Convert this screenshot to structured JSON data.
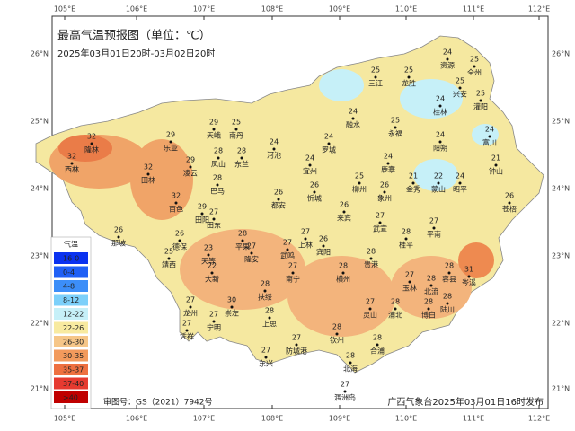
{
  "header": {
    "title": "最高气温预报图（单位：℃）",
    "subtitle": "2025年03月01日20时-03月02日20时"
  },
  "map": {
    "lon_labels": [
      "105°E",
      "106°E",
      "107°E",
      "108°E",
      "109°E",
      "110°E",
      "111°E",
      "112°E"
    ],
    "lat_labels": [
      "26°N",
      "25°N",
      "24°N",
      "23°N",
      "22°N",
      "21°N"
    ],
    "cities": [
      {
        "name": "资源",
        "temp": 24
      },
      {
        "name": "全州",
        "temp": 25
      },
      {
        "name": "三江",
        "temp": 25
      },
      {
        "name": "龙胜",
        "temp": 25
      },
      {
        "name": "兴安",
        "temp": 25
      },
      {
        "name": "灌阳",
        "temp": 25
      },
      {
        "name": "融水",
        "temp": 24
      },
      {
        "name": "永福",
        "temp": 25
      },
      {
        "name": "桂林",
        "temp": 24
      },
      {
        "name": "阳朔",
        "temp": 24
      },
      {
        "name": "富川",
        "temp": 24
      },
      {
        "name": "钟山",
        "temp": 21
      },
      {
        "name": "南丹",
        "temp": 25
      },
      {
        "name": "天峨",
        "temp": 29
      },
      {
        "name": "河池",
        "temp": 24
      },
      {
        "name": "罗城",
        "temp": 24
      },
      {
        "name": "宜州",
        "temp": 24
      },
      {
        "name": "乐业",
        "temp": 29
      },
      {
        "name": "凌云",
        "temp": 29
      },
      {
        "name": "凤山",
        "temp": 28
      },
      {
        "name": "东兰",
        "temp": 28
      },
      {
        "name": "隆林",
        "temp": 32
      },
      {
        "name": "西林",
        "temp": 32
      },
      {
        "name": "田林",
        "temp": 32
      },
      {
        "name": "巴马",
        "temp": 28
      },
      {
        "name": "百色",
        "temp": 32
      },
      {
        "name": "田阳",
        "temp": 29
      },
      {
        "name": "田东",
        "temp": 27
      },
      {
        "name": "都安",
        "temp": 26
      },
      {
        "name": "忻城",
        "temp": 26
      },
      {
        "name": "柳州",
        "temp": 25
      },
      {
        "name": "鹿寨",
        "temp": 24
      },
      {
        "name": "来宾",
        "temp": 26
      },
      {
        "name": "象州",
        "temp": 26
      },
      {
        "name": "金秀",
        "temp": 21
      },
      {
        "name": "蒙山",
        "temp": 22
      },
      {
        "name": "昭平",
        "temp": 24
      },
      {
        "name": "苍梧",
        "temp": 26
      },
      {
        "name": "武宣",
        "temp": 27
      },
      {
        "name": "桂平",
        "temp": 28
      },
      {
        "name": "平南",
        "temp": 27
      },
      {
        "name": "岑溪",
        "temp": 31
      },
      {
        "name": "容县",
        "temp": 28
      },
      {
        "name": "北流",
        "temp": 28
      },
      {
        "name": "玉林",
        "temp": 27
      },
      {
        "name": "贵港",
        "temp": 28
      },
      {
        "name": "横州",
        "temp": 28
      },
      {
        "name": "宾阳",
        "temp": 26
      },
      {
        "name": "上林",
        "temp": 27
      },
      {
        "name": "武鸣",
        "temp": 27
      },
      {
        "name": "南宁",
        "temp": 27
      },
      {
        "name": "平果",
        "temp": 28
      },
      {
        "name": "隆安",
        "temp": 27
      },
      {
        "name": "天等",
        "temp": 23
      },
      {
        "name": "大新",
        "temp": 22
      },
      {
        "name": "德保",
        "temp": 26
      },
      {
        "name": "靖西",
        "temp": 25
      },
      {
        "name": "那坡",
        "temp": 26
      },
      {
        "name": "扶绥",
        "temp": 28
      },
      {
        "name": "崇左",
        "temp": 30
      },
      {
        "name": "龙州",
        "temp": 27
      },
      {
        "name": "凭祥",
        "temp": 27
      },
      {
        "name": "宁明",
        "temp": 27
      },
      {
        "name": "上思",
        "temp": 28
      },
      {
        "name": "钦州",
        "temp": 28
      },
      {
        "name": "灵山",
        "temp": 27
      },
      {
        "name": "浦北",
        "temp": 28
      },
      {
        "name": "博白",
        "temp": 28
      },
      {
        "name": "陆川",
        "temp": 28
      },
      {
        "name": "合浦",
        "temp": 28
      },
      {
        "name": "北海",
        "temp": 28
      },
      {
        "name": "防城港",
        "temp": 27
      },
      {
        "name": "东兴",
        "temp": 27
      },
      {
        "name": "涠洲岛",
        "temp": 27
      }
    ]
  },
  "legend": {
    "title": "气温",
    "items": [
      {
        "label": "16-0",
        "color": "#0a32f0"
      },
      {
        "label": "0-4",
        "color": "#2060f5"
      },
      {
        "label": "4-8",
        "color": "#3c8ef8"
      },
      {
        "label": "8-12",
        "color": "#7cd0fa"
      },
      {
        "label": "12-22",
        "color": "#c6f0f8"
      },
      {
        "label": "22-26",
        "color": "#f8eaa0"
      },
      {
        "label": "26-30",
        "color": "#f6c688"
      },
      {
        "label": "30-35",
        "color": "#f29a5c"
      },
      {
        "label": "35-37",
        "color": "#ee7040"
      },
      {
        "label": "37-40",
        "color": "#e63a30"
      },
      {
        "label": ">40",
        "color": "#c00000"
      }
    ]
  },
  "footer": {
    "approval": "审图号：GS（2021）7942号",
    "publisher": "广西气象台2025年03月01日16时发布"
  }
}
